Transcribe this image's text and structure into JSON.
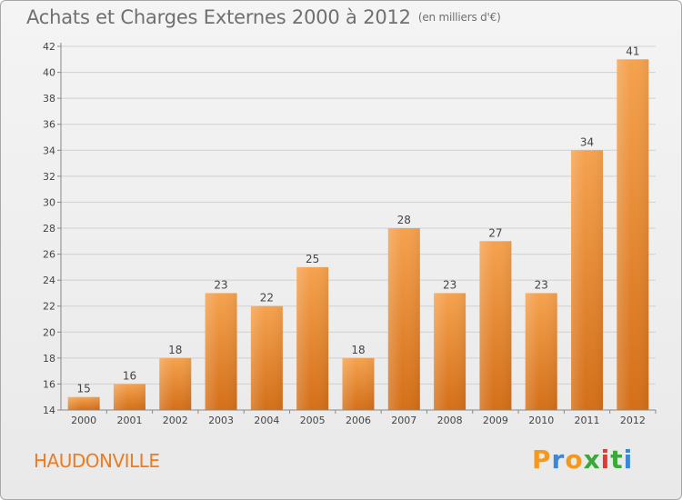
{
  "header": {
    "title": "Achats et Charges Externes 2000 à 2012",
    "unit": "(en milliers d'€)"
  },
  "footer": {
    "commune": "HAUDONVILLE",
    "logo": {
      "text": "Proxiti",
      "letter_colors": [
        "#f39a1e",
        "#3a86d8",
        "#f39a1e",
        "#3aa83a",
        "#e23a2e",
        "#3aa83a",
        "#3a86d8"
      ]
    }
  },
  "colors": {
    "bar_top": "#f5a24e",
    "bar_bottom": "#d46f18",
    "grid": "#d0d0d0",
    "axis": "#888888",
    "title": "#707070",
    "commune": "#f07a1e"
  },
  "chart_data": {
    "type": "bar",
    "title": "Achats et Charges Externes 2000 à 2012",
    "subtitle": "(en milliers d'€)",
    "xlabel": "",
    "ylabel": "",
    "categories": [
      "2000",
      "2001",
      "2002",
      "2003",
      "2004",
      "2005",
      "2006",
      "2007",
      "2008",
      "2009",
      "2010",
      "2011",
      "2012"
    ],
    "values": [
      15,
      16,
      18,
      23,
      22,
      25,
      18,
      28,
      23,
      27,
      23,
      34,
      41
    ],
    "value_labels": [
      "15",
      "16",
      "18",
      "23",
      "22",
      "25",
      "18",
      "28",
      "23",
      "27",
      "23",
      "34",
      "41"
    ],
    "ylim": [
      14,
      42
    ],
    "yticks": [
      14,
      16,
      18,
      20,
      22,
      24,
      26,
      28,
      30,
      32,
      34,
      36,
      38,
      40,
      42
    ],
    "ytick_labels": [
      "14",
      "16",
      "18",
      "20",
      "22",
      "24",
      "26",
      "28",
      "30",
      "32",
      "34",
      "36",
      "38",
      "40",
      "42"
    ],
    "grid": true,
    "legend": "none"
  }
}
